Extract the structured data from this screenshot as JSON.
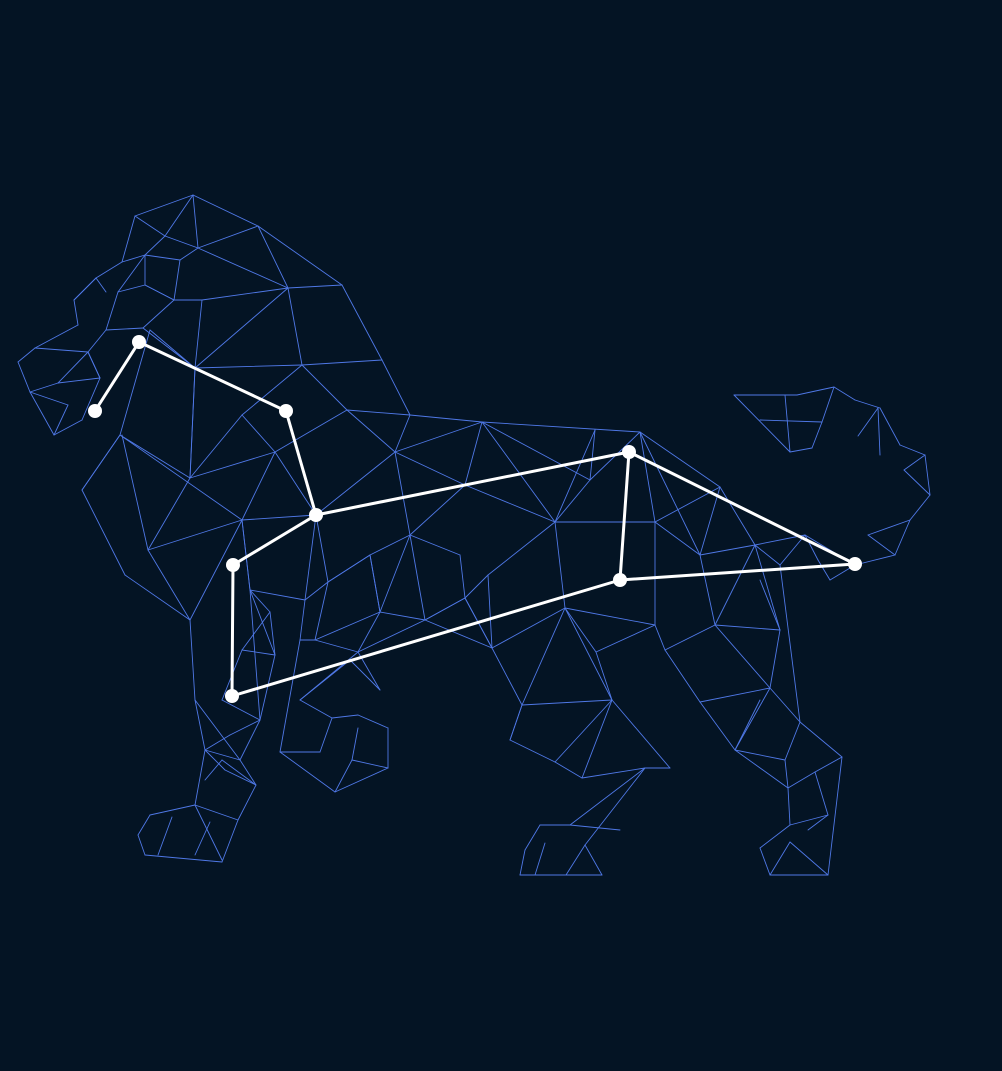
{
  "colors": {
    "background": "#041424",
    "mesh_line": "#4f78e6",
    "constellation": "#ffffff"
  }
}
